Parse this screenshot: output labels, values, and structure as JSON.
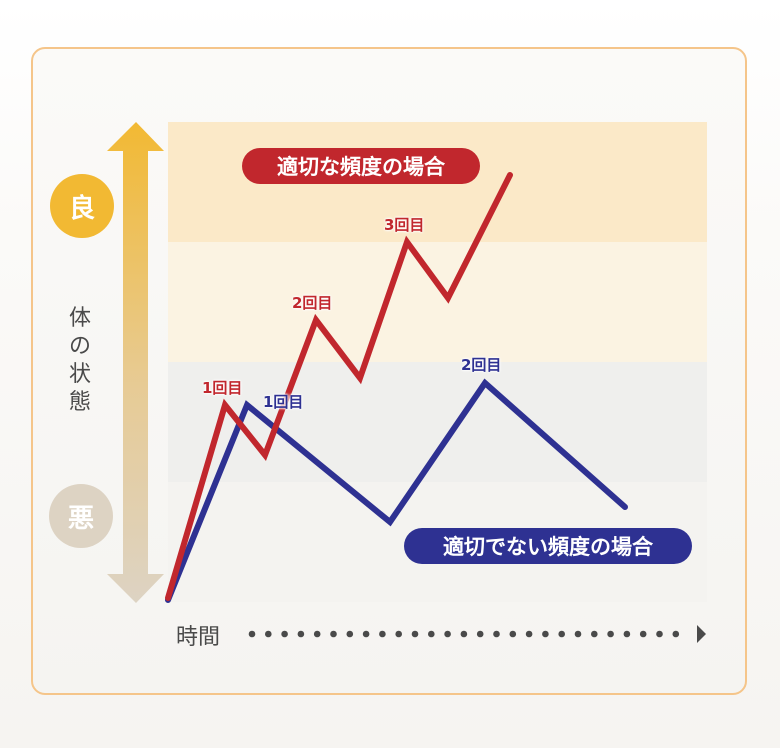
{
  "colors": {
    "good": "#f2b933",
    "bad": "#ddd3c3",
    "appropriate": "#c1272d",
    "inappropriate": "#2e3192",
    "axis_text": "#4a4a4a"
  },
  "y_axis": {
    "top_label": "良",
    "bottom_label": "悪",
    "title": "体の状態"
  },
  "x_axis": {
    "title": "時間"
  },
  "series": [
    {
      "name": "適切な頻度の場合",
      "annotations": [
        "1回目",
        "2回目",
        "3回目"
      ]
    },
    {
      "name": "適切でない頻度の場合",
      "annotations": [
        "1回目",
        "2回目"
      ]
    }
  ]
}
